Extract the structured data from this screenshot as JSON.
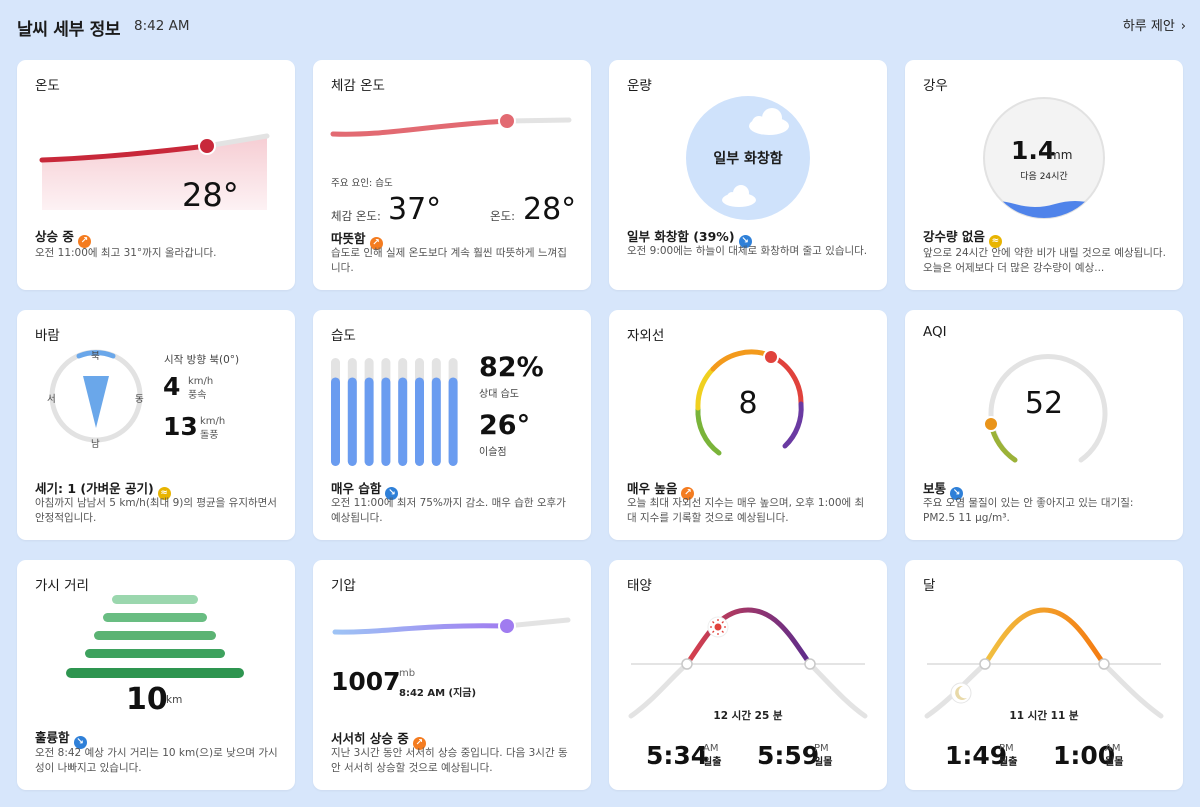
{
  "header": {
    "title": "날씨 세부 정보",
    "time": "8:42 AM",
    "suggest": "하루 제안",
    "chevron": "›"
  },
  "colors": {
    "background": "#d7e6fb",
    "card": "#ffffff",
    "temp_line": "#c8283a",
    "pressure_line": "#a07cf0"
  },
  "temperature": {
    "title": "온도",
    "value": "28°",
    "status": "상승 중",
    "status_icon": "trend-up-icon",
    "desc": "오전 11:00에 최고 31°까지 올라갑니다."
  },
  "feels_like": {
    "title": "체감 온도",
    "factor": "주요 요인: 습도",
    "feels_label": "체감 온도:",
    "feels_value": "37°",
    "temp_label": "온도:",
    "temp_value": "28°",
    "status": "따뜻함",
    "status_icon": "trend-up-icon",
    "desc": "습도로 인해 실제 온도보다 계속 훨씬 따뜻하게 느껴집니다."
  },
  "clouds": {
    "title": "운량",
    "center": "일부 화창함",
    "status": "일부 화창함 (39%)",
    "status_icon": "trend-down-icon",
    "desc": "오전 9:00에는 하늘이 대체로 화창하며 줄고 있습니다."
  },
  "rain": {
    "title": "강우",
    "value": "1.4",
    "unit": "mm",
    "period": "다음 24시간",
    "status": "강수량 없음",
    "status_icon": "trend-flat-icon",
    "desc": "앞으로 24시간 안에 약한 비가 내릴 것으로 예상됩니다. 오늘은 어제보다 더 많은 강수량이 예상..."
  },
  "wind": {
    "title": "바람",
    "north": "북",
    "south": "남",
    "west": "서",
    "east": "동",
    "direction": "시작 방향 북(0°)",
    "speed": "4",
    "speed_unit": "km/h",
    "speed_label": "풍속",
    "gust": "13",
    "gust_unit": "km/h",
    "gust_label": "돌풍",
    "status": "세기: 1 (가벼운 공기)",
    "status_icon": "trend-flat-icon",
    "desc": "아침까지 남남서 5 km/h(최대 9)의 평균을 유지하면서 안정적입니다."
  },
  "humidity": {
    "title": "습도",
    "value": "82%",
    "value_label": "상대 습도",
    "dew": "26°",
    "dew_label": "이슬점",
    "status": "매우 습함",
    "status_icon": "trend-down-icon",
    "desc": "오전 11:00에 최저 75%까지 감소. 매우 습한 오후가 예상됩니다."
  },
  "uv": {
    "title": "자외선",
    "value": "8",
    "status": "매우 높음",
    "status_icon": "trend-up-icon",
    "desc": "오늘 최대 자외선 지수는 매우 높으며, 오후 1:00에 최대 지수를 기록할 것으로 예상됩니다."
  },
  "aqi": {
    "title": "AQI",
    "value": "52",
    "status": "보통",
    "status_icon": "trend-down-icon",
    "desc": "주요 오염 물질이 있는 안 좋아지고 있는 대기질: PM2.5 11 μg/m³."
  },
  "visibility": {
    "title": "가시 거리",
    "value": "10",
    "unit": "km",
    "status": "훌륭함",
    "status_icon": "trend-down-icon",
    "desc": "오전 8:42 예상 가시 거리는 10 km(으)로 낮으며 가시성이 나빠지고 있습니다."
  },
  "pressure": {
    "title": "기압",
    "value": "1007",
    "unit": "mb",
    "time": "8:42 AM (지금)",
    "status": "서서히 상승 중",
    "status_icon": "trend-up-icon",
    "desc": "지난 3시간 동안 서서히 상승 중입니다. 다음 3시간 동안 서서히 상승할 것으로 예상됩니다."
  },
  "sun": {
    "title": "태양",
    "duration": "12 시간 25 분",
    "rise_time": "5:34",
    "rise_ampm": "AM",
    "rise_label": "일출",
    "set_time": "5:59",
    "set_ampm": "PM",
    "set_label": "일몰"
  },
  "moon": {
    "title": "달",
    "duration": "11 시간 11 분",
    "rise_time": "1:49",
    "rise_ampm": "PM",
    "rise_label": "월출",
    "set_time": "1:00",
    "set_ampm": "AM",
    "set_label": "월몰"
  }
}
